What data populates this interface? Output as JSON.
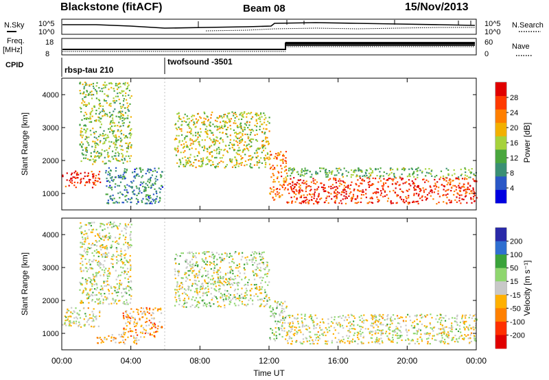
{
  "header": {
    "station": "Blackstone (fitACF)",
    "beam": "Beam 08",
    "date": "15/Nov/2013"
  },
  "labels": {
    "nsky": "N.Sky",
    "freq_line1": "Freq.",
    "freq_line2": "[MHz]",
    "cpid": "CPID",
    "nsearch": "N.Search",
    "nave": "Nave",
    "cpid_1": "rbsp-tau 210",
    "cpid_2": "twofsound -3501"
  },
  "noise_axis": {
    "left_ticks": [
      "10^5",
      "10^0"
    ],
    "right_ticks": [
      "10^5",
      "10^0"
    ]
  },
  "freq_axis": {
    "left_ticks": [
      "18",
      "8"
    ],
    "right_ticks": [
      "60",
      "0"
    ]
  },
  "colors": {
    "power_scale": [
      "#0000e0",
      "#2a57c6",
      "#3a8f74",
      "#4aa63e",
      "#a6d23c",
      "#f2b000",
      "#ff7f00",
      "#ff3a00",
      "#e00000"
    ],
    "velocity_scale": [
      "#2a2aa8",
      "#2f6fd0",
      "#3aa23a",
      "#8fd66f",
      "#c8c8c8",
      "#ffb000",
      "#ff8000",
      "#ff3000",
      "#e00000"
    ]
  },
  "chart_data": [
    {
      "type": "heatmap",
      "title": "Power",
      "xlabel": "",
      "ylabel": "Slant Range [km]",
      "x_ticks": [
        "00:00",
        "04:00",
        "08:00",
        "12:00",
        "16:00",
        "20:00",
        "00:00"
      ],
      "y_ticks": [
        "1000",
        "2000",
        "3000",
        "4000"
      ],
      "ylim": [
        500,
        4500
      ],
      "colorbar": {
        "label": "Power [dB]",
        "ticks": [
          "4",
          "8",
          "12",
          "16",
          "20",
          "24",
          "28"
        ],
        "range": [
          0,
          30
        ]
      },
      "regions": [
        {
          "t": [
            0.0,
            2.2
          ],
          "range": [
            1200,
            1700
          ],
          "value": 27
        },
        {
          "t": [
            1.0,
            4.0
          ],
          "range": [
            1900,
            4400
          ],
          "value": 14
        },
        {
          "t": [
            2.5,
            5.8
          ],
          "range": [
            700,
            1800
          ],
          "value": 8
        },
        {
          "t": [
            6.5,
            12.0
          ],
          "range": [
            1800,
            3500
          ],
          "value": 16
        },
        {
          "t": [
            12.0,
            13.0
          ],
          "range": [
            800,
            2300
          ],
          "value": 22
        },
        {
          "t": [
            13.0,
            24.0
          ],
          "range": [
            700,
            1500
          ],
          "value": 26
        },
        {
          "t": [
            13.0,
            24.0
          ],
          "range": [
            1500,
            1800
          ],
          "value": 12
        }
      ]
    },
    {
      "type": "heatmap",
      "title": "Velocity",
      "xlabel": "Time UT",
      "ylabel": "Slant Range [km]",
      "x_ticks": [
        "00:00",
        "04:00",
        "08:00",
        "12:00",
        "16:00",
        "20:00",
        "00:00"
      ],
      "y_ticks": [
        "1000",
        "2000",
        "3000",
        "4000"
      ],
      "ylim": [
        500,
        4500
      ],
      "colorbar": {
        "label": "Velocity [m s⁻¹]",
        "ticks": [
          "200",
          "100",
          "50",
          "15",
          "-15",
          "-50",
          "-100",
          "-200"
        ],
        "range": [
          -250,
          250
        ]
      },
      "regions": [
        {
          "t": [
            0.0,
            2.2
          ],
          "range": [
            1200,
            1800
          ],
          "value": 0
        },
        {
          "t": [
            1.0,
            4.0
          ],
          "range": [
            1900,
            4400
          ],
          "value": 10
        },
        {
          "t": [
            3.5,
            5.8
          ],
          "range": [
            900,
            1800
          ],
          "value": -80
        },
        {
          "t": [
            2.0,
            4.5
          ],
          "range": [
            700,
            1000
          ],
          "value": -60
        },
        {
          "t": [
            6.5,
            12.0
          ],
          "range": [
            1800,
            3500
          ],
          "value": 20
        },
        {
          "t": [
            12.0,
            13.0
          ],
          "range": [
            800,
            2000
          ],
          "value": 40
        },
        {
          "t": [
            13.0,
            24.0
          ],
          "range": [
            700,
            1600
          ],
          "value": 0
        }
      ]
    }
  ]
}
